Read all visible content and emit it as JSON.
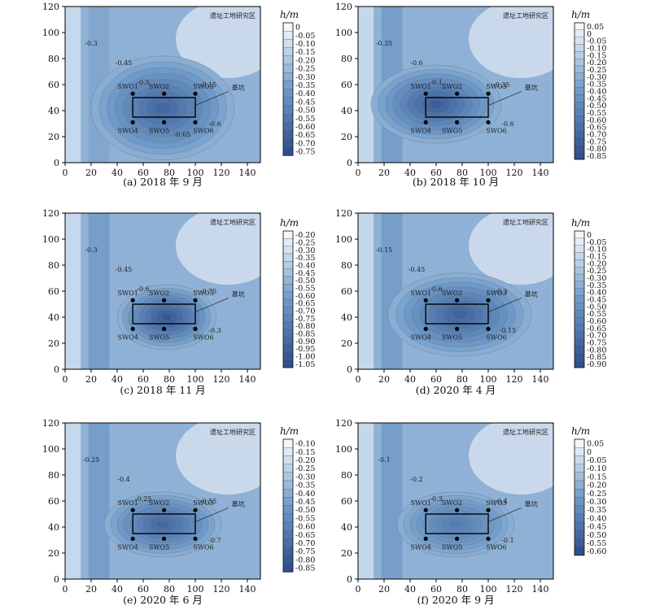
{
  "chart_data": [
    {
      "type": "heatmap",
      "caption": "(a) 2018 年 9 月",
      "region_label": "遗址工地研究区",
      "pit_label": "基坑",
      "wells": [
        "SWO1",
        "SWO2",
        "SWO3",
        "SWO4",
        "SWO5",
        "SWO6"
      ],
      "unit_label": "h/m",
      "xlim": [
        0,
        150
      ],
      "ylim": [
        0,
        120
      ],
      "xticks": [
        0,
        20,
        40,
        60,
        80,
        100,
        120,
        140
      ],
      "yticks": [
        0,
        20,
        40,
        60,
        80,
        100,
        120
      ],
      "colorbar_ticks": [
        0,
        -0.05,
        -0.1,
        -0.15,
        -0.2,
        -0.25,
        -0.3,
        -0.35,
        -0.4,
        -0.45,
        -0.5,
        -0.55,
        -0.6,
        -0.65,
        -0.7,
        -0.75
      ],
      "colorbar_labels": [
        "0",
        "-0.05",
        "-0.10",
        "-0.15",
        "-0.20",
        "-0.25",
        "-0.30",
        "-0.35",
        "-0.40",
        "-0.45",
        "-0.50",
        "-0.55",
        "-0.60",
        "-0.65",
        "-0.70",
        "-0.75"
      ],
      "contour_labels": [
        "-0.3",
        "-0.45",
        "-0.5",
        "-0.15",
        "-0.6",
        "-0.65"
      ]
    },
    {
      "type": "heatmap",
      "caption": "(b) 2018 年 10 月",
      "region_label": "遗址工地研究区",
      "pit_label": "基坑",
      "wells": [
        "SWO1",
        "SWO2",
        "SWO3",
        "SWO4",
        "SWO5",
        "SWO6"
      ],
      "unit_label": "h/m",
      "xlim": [
        0,
        150
      ],
      "ylim": [
        0,
        120
      ],
      "xticks": [
        0,
        20,
        40,
        60,
        80,
        100,
        120,
        140
      ],
      "yticks": [
        0,
        20,
        40,
        60,
        80,
        100,
        120
      ],
      "colorbar_ticks": [
        0.05,
        0,
        -0.05,
        -0.1,
        -0.15,
        -0.2,
        -0.25,
        -0.3,
        -0.35,
        -0.4,
        -0.45,
        -0.5,
        -0.55,
        -0.6,
        -0.65,
        -0.7,
        -0.75,
        -0.8,
        -0.85
      ],
      "colorbar_labels": [
        "0.05",
        "0",
        "-0.05",
        "-0.10",
        "-0.15",
        "-0.20",
        "-0.25",
        "-0.30",
        "-0.35",
        "-0.40",
        "-0.45",
        "-0.50",
        "-0.55",
        "-0.60",
        "-0.65",
        "-0.70",
        "-0.75",
        "-0.80",
        "-0.85"
      ],
      "contour_labels": [
        "-0.35",
        "-0.6",
        "-0.1",
        "-0.35",
        "-0.6"
      ]
    },
    {
      "type": "heatmap",
      "caption": "(c) 2018 年 11 月",
      "region_label": "遗址工地研究区",
      "pit_label": "基坑",
      "wells": [
        "SWO1",
        "SWO2",
        "SWO3",
        "SWO4",
        "SWO5",
        "SWO6"
      ],
      "unit_label": "h/m",
      "xlim": [
        0,
        150
      ],
      "ylim": [
        0,
        120
      ],
      "xticks": [
        0,
        20,
        40,
        60,
        80,
        100,
        120,
        140
      ],
      "yticks": [
        0,
        20,
        40,
        60,
        80,
        100,
        120
      ],
      "colorbar_ticks": [
        -0.2,
        -0.25,
        -0.3,
        -0.35,
        -0.4,
        -0.45,
        -0.5,
        -0.55,
        -0.6,
        -0.65,
        -0.7,
        -0.75,
        -0.8,
        -0.85,
        -0.9,
        -0.95,
        -1.0,
        -1.05
      ],
      "colorbar_labels": [
        "-0.20",
        "-0.25",
        "-0.30",
        "-0.35",
        "-0.40",
        "-0.45",
        "-0.50",
        "-0.55",
        "-0.60",
        "-0.65",
        "-0.70",
        "-0.75",
        "-0.80",
        "-0.85",
        "-0.90",
        "-0.95",
        "-1.00",
        "-1.05"
      ],
      "contour_labels": [
        "-0.3",
        "-0.45",
        "-0.6",
        "-0.75",
        "-0.3"
      ]
    },
    {
      "type": "heatmap",
      "caption": "(d) 2020 年 4 月",
      "region_label": "遗址工地研究区",
      "pit_label": "基坑",
      "wells": [
        "SWO1",
        "SWO2",
        "SWO3",
        "SWO4",
        "SWO5",
        "SWO6"
      ],
      "unit_label": "h/m",
      "xlim": [
        0,
        150
      ],
      "ylim": [
        0,
        120
      ],
      "xticks": [
        0,
        20,
        40,
        60,
        80,
        100,
        120,
        140
      ],
      "yticks": [
        0,
        20,
        40,
        60,
        80,
        100,
        120
      ],
      "colorbar_ticks": [
        0,
        -0.05,
        -0.1,
        -0.15,
        -0.2,
        -0.25,
        -0.3,
        -0.35,
        -0.4,
        -0.45,
        -0.5,
        -0.55,
        -0.6,
        -0.65,
        -0.7,
        -0.75,
        -0.8,
        -0.85,
        -0.9
      ],
      "colorbar_labels": [
        "0",
        "-0.05",
        "-0.10",
        "-0.15",
        "-0.20",
        "-0.25",
        "-0.30",
        "-0.35",
        "-0.40",
        "-0.45",
        "-0.50",
        "-0.55",
        "-0.60",
        "-0.65",
        "-0.70",
        "-0.75",
        "-0.80",
        "-0.85",
        "-0.90"
      ],
      "contour_labels": [
        "-0.15",
        "-0.45",
        "-0.6",
        "-0.3",
        "-0.15"
      ]
    },
    {
      "type": "heatmap",
      "caption": "(e) 2020 年 6 月",
      "region_label": "遗址工地研究区",
      "pit_label": "基坑",
      "wells": [
        "SWO1",
        "SWO2",
        "SWO3",
        "SWO4",
        "SWO5",
        "SWO6"
      ],
      "unit_label": "h/m",
      "xlim": [
        0,
        150
      ],
      "ylim": [
        0,
        120
      ],
      "xticks": [
        0,
        20,
        40,
        60,
        80,
        100,
        120,
        140
      ],
      "yticks": [
        0,
        20,
        40,
        60,
        80,
        100,
        120
      ],
      "colorbar_ticks": [
        -0.1,
        -0.15,
        -0.2,
        -0.25,
        -0.3,
        -0.35,
        -0.4,
        -0.45,
        -0.5,
        -0.55,
        -0.6,
        -0.65,
        -0.7,
        -0.75,
        -0.8,
        -0.85
      ],
      "colorbar_labels": [
        "-0.10",
        "-0.15",
        "-0.20",
        "-0.25",
        "-0.30",
        "-0.35",
        "-0.40",
        "-0.45",
        "-0.50",
        "-0.55",
        "-0.60",
        "-0.65",
        "-0.70",
        "-0.75",
        "-0.80",
        "-0.85"
      ],
      "contour_labels": [
        "-0.25",
        "-0.4",
        "-0.25",
        "-0.55",
        "-0.7"
      ]
    },
    {
      "type": "heatmap",
      "caption": "(f) 2020 年 9 月",
      "region_label": "遗址工地研究区",
      "pit_label": "基坑",
      "wells": [
        "SWO1",
        "SWO2",
        "SWO3",
        "SWO4",
        "SWO5",
        "SWO6"
      ],
      "unit_label": "h/m",
      "xlim": [
        0,
        150
      ],
      "ylim": [
        0,
        120
      ],
      "xticks": [
        0,
        20,
        40,
        60,
        80,
        100,
        120,
        140
      ],
      "yticks": [
        0,
        20,
        40,
        60,
        80,
        100,
        120
      ],
      "colorbar_ticks": [
        0.05,
        0,
        -0.05,
        -0.1,
        -0.15,
        -0.2,
        -0.25,
        -0.3,
        -0.35,
        -0.4,
        -0.45,
        -0.5,
        -0.55,
        -0.6
      ],
      "colorbar_labels": [
        "0.05",
        "0",
        "-0.05",
        "-0.10",
        "-0.15",
        "-0.20",
        "-0.25",
        "-0.30",
        "-0.35",
        "-0.40",
        "-0.45",
        "-0.50",
        "-0.55",
        "-0.60"
      ],
      "contour_labels": [
        "-0.1",
        "-0.2",
        "-0.3",
        "-0.4",
        "-0.1"
      ]
    }
  ],
  "colors": {
    "light": "#f3f7fb",
    "mid": "#6f9bc9",
    "dark": "#2f4f8f",
    "line": "#6b7380"
  }
}
